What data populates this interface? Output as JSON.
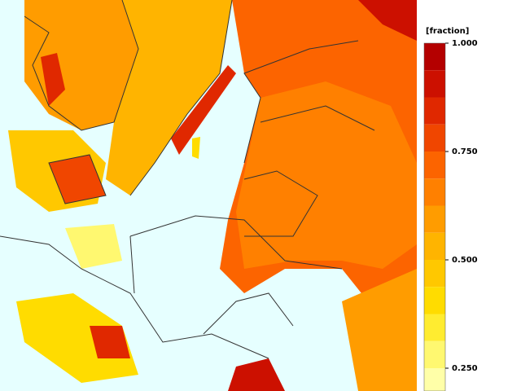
{
  "color_bar": {
    "label": "[fraction]",
    "levels": [
      1.0,
      0.9375,
      0.875,
      0.8125,
      0.75,
      0.6875,
      0.625,
      0.5625,
      0.5,
      0.4375,
      0.375,
      0.3125,
      0.25,
      0.1875
    ],
    "colors": [
      "#b40000",
      "#cc1000",
      "#e02800",
      "#f04600",
      "#fc6400",
      "#ff8000",
      "#ff9c00",
      "#ffb400",
      "#ffc800",
      "#ffdc00",
      "#ffec30",
      "#fff870",
      "#ffffa8"
    ],
    "ticks": [
      {
        "value": 1.0,
        "label": "1.000"
      },
      {
        "value": 0.75,
        "label": "0.750"
      },
      {
        "value": 0.5,
        "label": "0.500"
      },
      {
        "value": 0.25,
        "label": "0.250"
      }
    ]
  }
}
